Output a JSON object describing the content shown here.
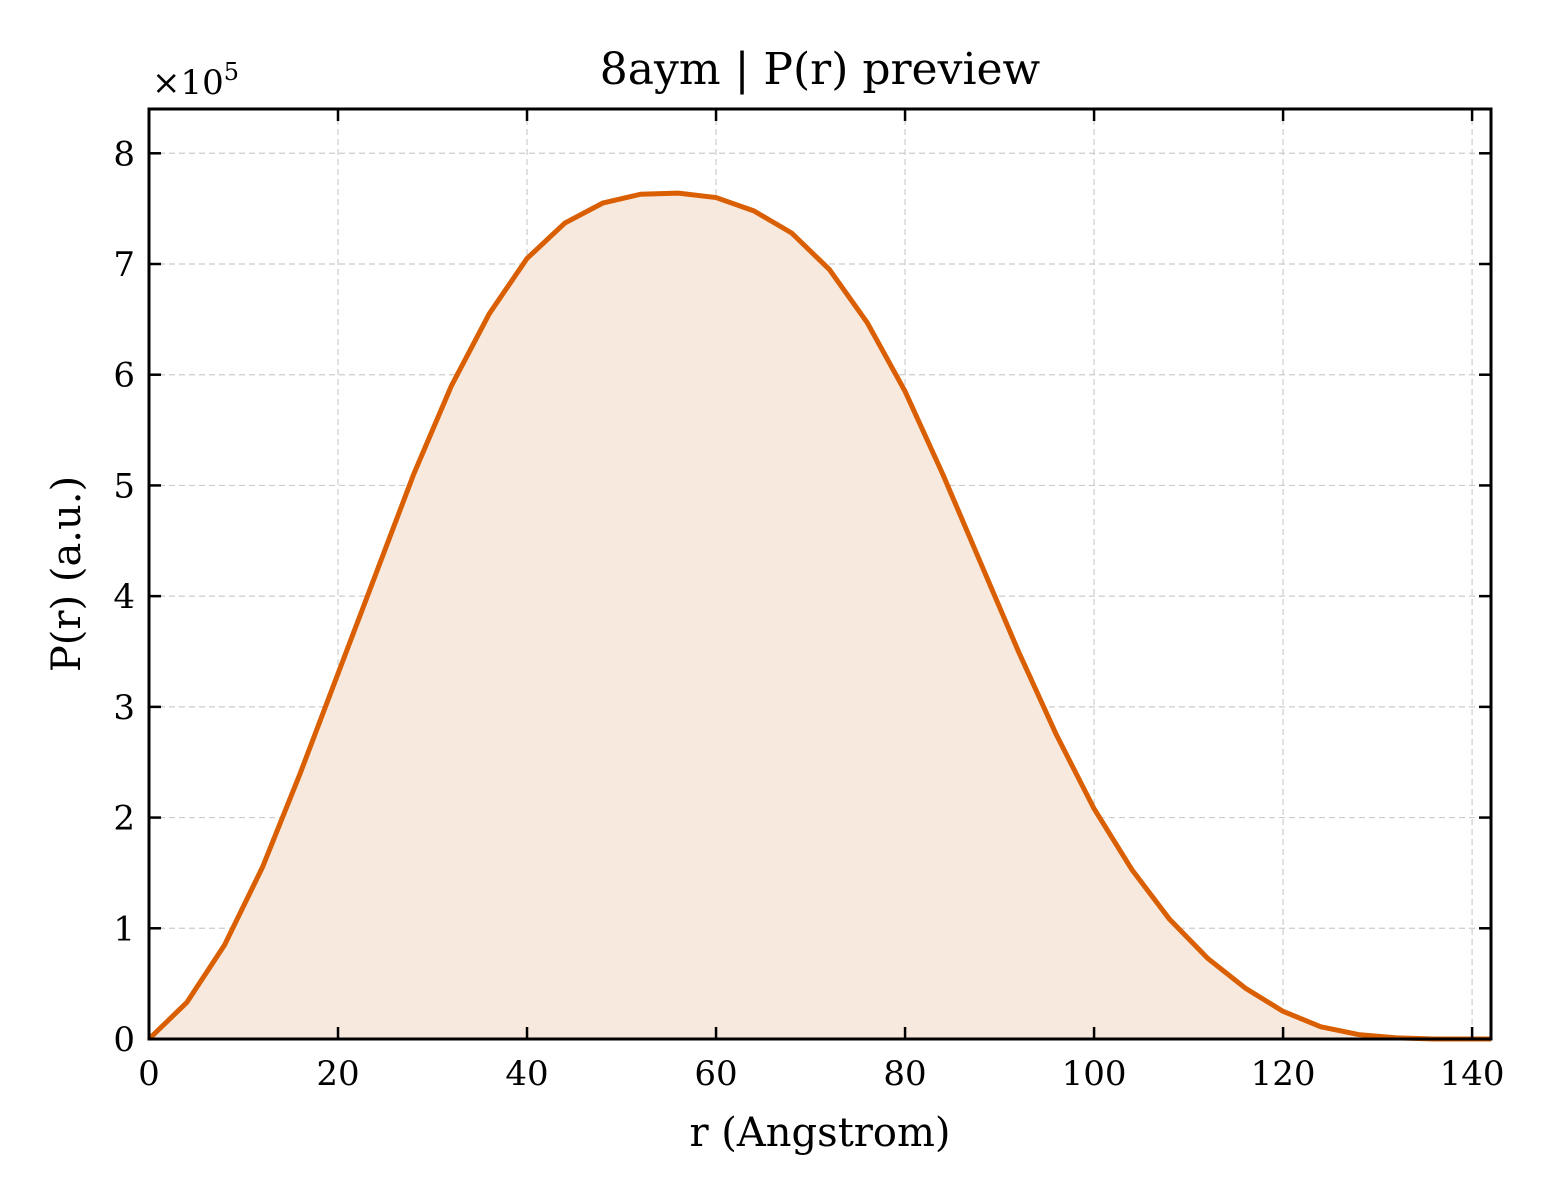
{
  "chart_data": {
    "type": "area",
    "title": "8aym | P(r) preview",
    "xlabel": "r (Angstrom)",
    "ylabel": "P(r) (a.u.)",
    "y_multiplier": "×10",
    "y_multiplier_exponent": "5",
    "xlim": [
      0,
      142
    ],
    "ylim": [
      0,
      8.4
    ],
    "x_ticks": [
      0,
      20,
      40,
      60,
      80,
      100,
      120,
      140
    ],
    "y_ticks": [
      0,
      1,
      2,
      3,
      4,
      5,
      6,
      7,
      8
    ],
    "grid": true,
    "line_color": "#d95f02",
    "fill_color": "#f8e9df",
    "series": [
      {
        "x": [
          0,
          4,
          8,
          12,
          16,
          20,
          24,
          28,
          32,
          36,
          40,
          44,
          48,
          52,
          56,
          60,
          64,
          68,
          72,
          76,
          80,
          84,
          88,
          92,
          96,
          100,
          104,
          108,
          112,
          116,
          120,
          124,
          128,
          132,
          136,
          140,
          142
        ],
        "y": [
          0,
          0.33,
          0.85,
          1.55,
          2.4,
          3.3,
          4.2,
          5.1,
          5.9,
          6.55,
          7.05,
          7.37,
          7.55,
          7.63,
          7.64,
          7.6,
          7.48,
          7.28,
          6.95,
          6.47,
          5.85,
          5.1,
          4.3,
          3.5,
          2.75,
          2.08,
          1.53,
          1.08,
          0.73,
          0.46,
          0.25,
          0.11,
          0.04,
          0.01,
          0.0,
          0.0,
          0.0
        ]
      }
    ]
  }
}
